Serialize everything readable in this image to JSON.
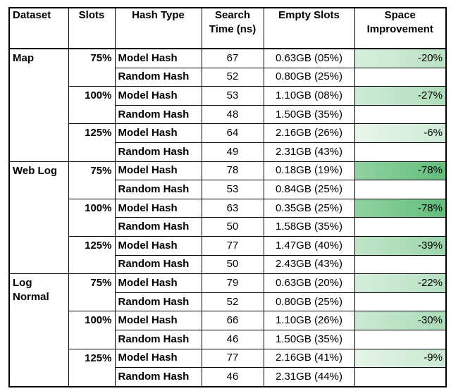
{
  "table": {
    "header": [
      "Dataset",
      "Slots",
      "Hash Type",
      "Search Time (ns)",
      "Empty Slots",
      "Space Improvement"
    ],
    "groups": [
      {
        "name": "Map",
        "levels": [
          {
            "slots": "75%",
            "rows": [
              {
                "hash": "Model Hash",
                "time": "67",
                "empty": "0.63GB (05%)",
                "improvement": "-20%"
              },
              {
                "hash": "Random Hash",
                "time": "52",
                "empty": "0.80GB (25%)"
              }
            ]
          },
          {
            "slots": "100%",
            "rows": [
              {
                "hash": "Model Hash",
                "time": "53",
                "empty": "1.10GB (08%)",
                "improvement": "-27%"
              },
              {
                "hash": "Random Hash",
                "time": "48",
                "empty": "1.50GB (35%)"
              }
            ]
          },
          {
            "slots": "125%",
            "rows": [
              {
                "hash": "Model Hash",
                "time": "64",
                "empty": "2.16GB (26%)",
                "improvement": "-6%"
              },
              {
                "hash": "Random Hash",
                "time": "49",
                "empty": "2.31GB (43%)"
              }
            ]
          }
        ]
      },
      {
        "name": "Web Log",
        "levels": [
          {
            "slots": "75%",
            "rows": [
              {
                "hash": "Model Hash",
                "time": "78",
                "empty": "0.18GB (19%)",
                "improvement": "-78%"
              },
              {
                "hash": "Random Hash",
                "time": "53",
                "empty": "0.84GB (25%)"
              }
            ]
          },
          {
            "slots": "100%",
            "rows": [
              {
                "hash": "Model Hash",
                "time": "63",
                "empty": "0.35GB (25%)",
                "improvement": "-78%"
              },
              {
                "hash": "Random Hash",
                "time": "50",
                "empty": "1.58GB (35%)"
              }
            ]
          },
          {
            "slots": "125%",
            "rows": [
              {
                "hash": "Model Hash",
                "time": "77",
                "empty": "1.47GB (40%)",
                "improvement": "-39%"
              },
              {
                "hash": "Random Hash",
                "time": "50",
                "empty": "2.43GB (43%)"
              }
            ]
          }
        ]
      },
      {
        "name": "Log Normal",
        "levels": [
          {
            "slots": "75%",
            "rows": [
              {
                "hash": "Model Hash",
                "time": "79",
                "empty": "0.63GB (20%)",
                "improvement": "-22%"
              },
              {
                "hash": "Random Hash",
                "time": "52",
                "empty": "0.80GB (25%)"
              }
            ]
          },
          {
            "slots": "100%",
            "rows": [
              {
                "hash": "Model Hash",
                "time": "66",
                "empty": "1.10GB (26%)",
                "improvement": "-30%"
              },
              {
                "hash": "Random Hash",
                "time": "46",
                "empty": "1.50GB (35%)"
              }
            ]
          },
          {
            "slots": "125%",
            "rows": [
              {
                "hash": "Model Hash",
                "time": "77",
                "empty": "2.16GB (41%)",
                "improvement": "-9%"
              },
              {
                "hash": "Random Hash",
                "time": "46",
                "empty": "2.31GB (44%)"
              }
            ]
          }
        ]
      }
    ]
  }
}
